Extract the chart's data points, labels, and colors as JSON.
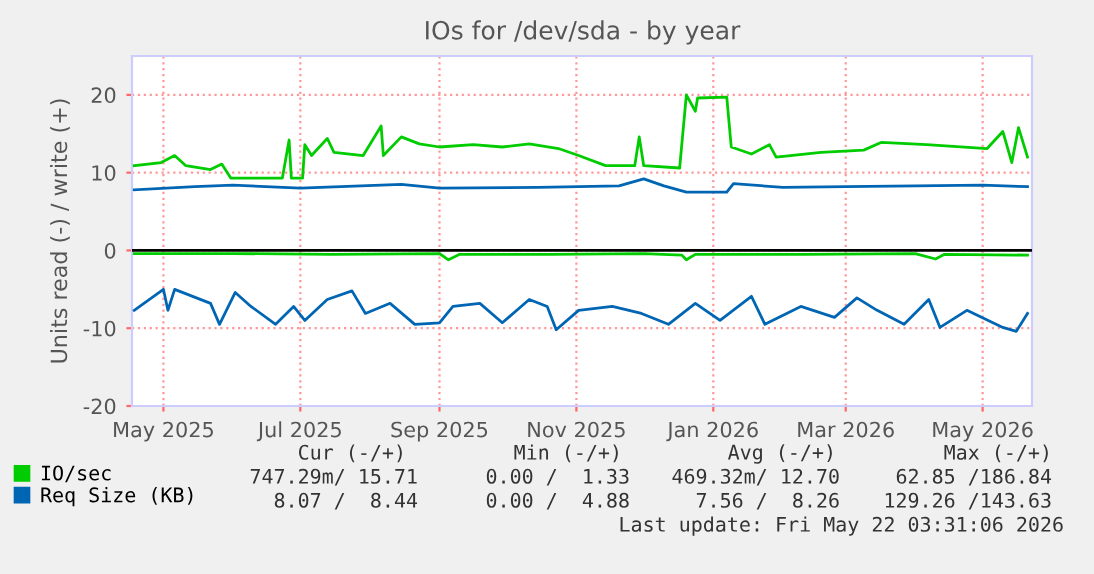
{
  "chart_data": {
    "type": "line",
    "title": "IOs for /dev/sda - by year",
    "ylabel": "Units read (-) / write (+)",
    "xlim": [
      "2025-04-17",
      "2026-05-23"
    ],
    "ylim": [
      -20,
      25
    ],
    "yticks": [
      -20,
      -10,
      0,
      10,
      20
    ],
    "xticks": [
      {
        "value": "2025-05-01",
        "label": "May 2025"
      },
      {
        "value": "2025-07-01",
        "label": "Jul 2025"
      },
      {
        "value": "2025-09-01",
        "label": "Sep 2025"
      },
      {
        "value": "2025-11-01",
        "label": "Nov 2025"
      },
      {
        "value": "2026-01-01",
        "label": "Jan 2026"
      },
      {
        "value": "2026-03-01",
        "label": "Mar 2026"
      },
      {
        "value": "2026-05-01",
        "label": "May 2026"
      }
    ],
    "grid": true,
    "legend": "bottom left",
    "line_style": "solid",
    "marker": "none",
    "ref_lines": [
      {
        "axis": "y",
        "value": 0,
        "color": "#000000"
      }
    ],
    "series": [
      {
        "name": "IO/sec",
        "color": "#00cc00",
        "x": [
          "2025-04-18",
          "2025-04-30",
          "2025-05-06",
          "2025-05-11",
          "2025-05-22",
          "2025-05-27",
          "2025-05-31",
          "2025-06-12",
          "2025-06-23",
          "2025-06-26",
          "2025-06-27",
          "2025-07-02",
          "2025-07-03",
          "2025-07-06",
          "2025-07-13",
          "2025-07-16",
          "2025-07-29",
          "2025-08-06",
          "2025-08-07",
          "2025-08-15",
          "2025-08-23",
          "2025-09-01",
          "2025-09-16",
          "2025-09-29",
          "2025-10-11",
          "2025-10-24",
          "2025-11-02",
          "2025-11-14",
          "2025-11-27",
          "2025-11-29",
          "2025-12-01",
          "2025-12-17",
          "2025-12-20",
          "2025-12-24",
          "2025-12-25",
          "2026-01-07",
          "2026-01-09",
          "2026-01-18",
          "2026-01-26",
          "2026-01-29",
          "2026-02-18",
          "2026-03-09",
          "2026-03-17",
          "2026-04-06",
          "2026-05-03",
          "2026-05-10",
          "2026-05-14",
          "2026-05-17",
          "2026-05-21"
        ],
        "values": [
          10.9,
          11.3,
          12.2,
          10.9,
          10.4,
          11.1,
          9.3,
          9.3,
          9.3,
          14.2,
          9.3,
          9.3,
          13.6,
          12.2,
          14.4,
          12.6,
          12.2,
          16,
          12.2,
          14.6,
          13.7,
          13.3,
          13.6,
          13.3,
          13.7,
          13.1,
          12.2,
          10.9,
          10.9,
          14.6,
          10.9,
          10.6,
          20,
          17.9,
          19.6,
          19.7,
          13.3,
          12.4,
          13.6,
          12.0,
          12.6,
          12.9,
          13.9,
          13.6,
          13.1,
          15.3,
          11.3,
          15.8,
          12.0
        ]
      },
      {
        "color": "#00cc00",
        "x": [
          "2025-04-18",
          "2025-06-01",
          "2025-07-15",
          "2025-09-01",
          "2025-09-05",
          "2025-09-10",
          "2025-10-20",
          "2025-12-01",
          "2025-12-18",
          "2025-12-20",
          "2025-12-24",
          "2026-02-10",
          "2026-04-01",
          "2026-04-10",
          "2026-04-14",
          "2026-05-21"
        ],
        "values": [
          -0.4,
          -0.4,
          -0.5,
          -0.4,
          -1.2,
          -0.5,
          -0.5,
          -0.4,
          -0.6,
          -1.2,
          -0.5,
          -0.5,
          -0.4,
          -1.1,
          -0.5,
          -0.6
        ]
      },
      {
        "name": "Req Size (KB)",
        "color": "#0066b3",
        "x": [
          "2025-04-18",
          "2025-05-15",
          "2025-06-01",
          "2025-07-01",
          "2025-08-15",
          "2025-09-01",
          "2025-10-15",
          "2025-11-20",
          "2025-12-01",
          "2025-12-10",
          "2025-12-20",
          "2026-01-07",
          "2026-01-10",
          "2026-02-01",
          "2026-03-01",
          "2026-04-01",
          "2026-05-01",
          "2026-05-21"
        ],
        "values": [
          7.8,
          8.2,
          8.4,
          8.0,
          8.5,
          8.0,
          8.1,
          8.3,
          9.2,
          8.3,
          7.5,
          7.5,
          8.6,
          8.1,
          8.2,
          8.3,
          8.4,
          8.2
        ]
      },
      {
        "color": "#0066b3",
        "x": [
          "2025-04-18",
          "2025-05-01",
          "2025-05-03",
          "2025-05-06",
          "2025-05-22",
          "2025-05-26",
          "2025-06-02",
          "2025-06-09",
          "2025-06-20",
          "2025-06-28",
          "2025-07-03",
          "2025-07-13",
          "2025-07-24",
          "2025-07-30",
          "2025-08-10",
          "2025-08-21",
          "2025-09-01",
          "2025-09-07",
          "2025-09-19",
          "2025-09-29",
          "2025-10-11",
          "2025-10-19",
          "2025-10-23",
          "2025-11-02",
          "2025-11-17",
          "2025-11-30",
          "2025-12-12",
          "2025-12-24",
          "2026-01-04",
          "2026-01-18",
          "2026-01-24",
          "2026-02-09",
          "2026-02-24",
          "2026-03-06",
          "2026-03-15",
          "2026-03-27",
          "2026-04-07",
          "2026-04-12",
          "2026-04-24",
          "2026-05-10",
          "2026-05-16",
          "2026-05-21"
        ],
        "values": [
          -7.7,
          -5.0,
          -7.7,
          -5.0,
          -6.8,
          -9.5,
          -5.4,
          -7.2,
          -9.5,
          -7.2,
          -9.0,
          -6.3,
          -5.2,
          -8.1,
          -6.8,
          -9.5,
          -9.3,
          -7.2,
          -6.8,
          -9.3,
          -6.3,
          -7.2,
          -10.2,
          -7.7,
          -7.2,
          -8.1,
          -9.5,
          -6.8,
          -9.0,
          -5.9,
          -9.5,
          -7.2,
          -8.6,
          -6.1,
          -7.7,
          -9.5,
          -6.3,
          -9.9,
          -7.7,
          -9.9,
          -10.4,
          -8.1
        ]
      }
    ],
    "annotations": [
      "Cur (-/+)",
      "Min (-/+)",
      "Avg (-/+)",
      "Max (-/+)",
      "747.29m/ 15.71",
      "0.00 /  1.33",
      "469.32m/ 12.70",
      "62.85 /186.84",
      "8.07 /  8.44",
      "0.00 /  4.88",
      "7.56 /  8.26",
      "129.26 /143.63",
      "Last update: Fri May 22 03:31:06 2026"
    ]
  }
}
